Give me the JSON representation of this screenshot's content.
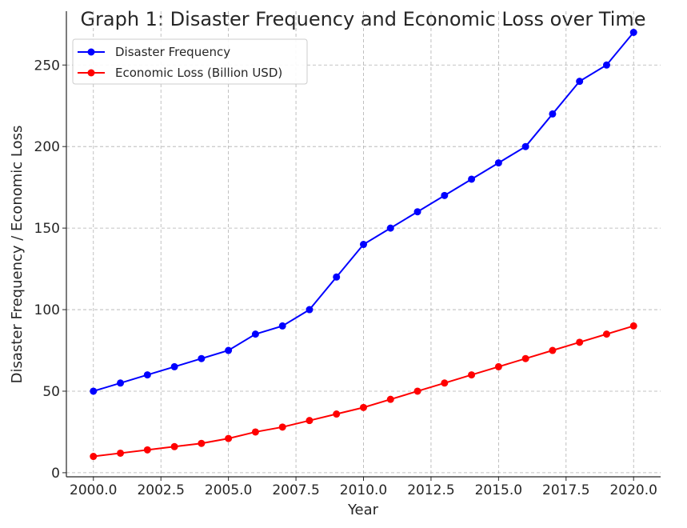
{
  "chart_data": {
    "type": "line",
    "title": "Graph 1: Disaster Frequency and Economic Loss over Time",
    "xlabel": "Year",
    "ylabel": "Disaster Frequency / Economic Loss",
    "x": [
      2000,
      2001,
      2002,
      2003,
      2004,
      2005,
      2006,
      2007,
      2008,
      2009,
      2010,
      2011,
      2012,
      2013,
      2014,
      2015,
      2016,
      2017,
      2018,
      2019,
      2020
    ],
    "series": [
      {
        "name": "Disaster Frequency",
        "color": "#0000ff",
        "values": [
          50,
          55,
          60,
          65,
          70,
          75,
          85,
          90,
          100,
          120,
          140,
          150,
          160,
          170,
          180,
          190,
          200,
          220,
          240,
          250,
          270
        ]
      },
      {
        "name": "Economic Loss (Billion USD)",
        "color": "#ff0000",
        "values": [
          10,
          12,
          14,
          16,
          18,
          21,
          25,
          28,
          32,
          36,
          40,
          45,
          50,
          55,
          60,
          65,
          70,
          75,
          80,
          85,
          90
        ]
      }
    ],
    "xlim": [
      1999,
      2021
    ],
    "ylim": [
      -2.5,
      283
    ],
    "xticks": [
      2000.0,
      2002.5,
      2005.0,
      2007.5,
      2010.0,
      2012.5,
      2015.0,
      2017.5,
      2020.0
    ],
    "xtick_labels": [
      "2000.0",
      "2002.5",
      "2005.0",
      "2007.5",
      "2010.0",
      "2012.5",
      "2015.0",
      "2017.5",
      "2020.0"
    ],
    "yticks": [
      0,
      50,
      100,
      150,
      200,
      250
    ],
    "ytick_labels": [
      "0",
      "50",
      "100",
      "150",
      "200",
      "250"
    ],
    "grid": true,
    "legend_position": "top-left"
  }
}
